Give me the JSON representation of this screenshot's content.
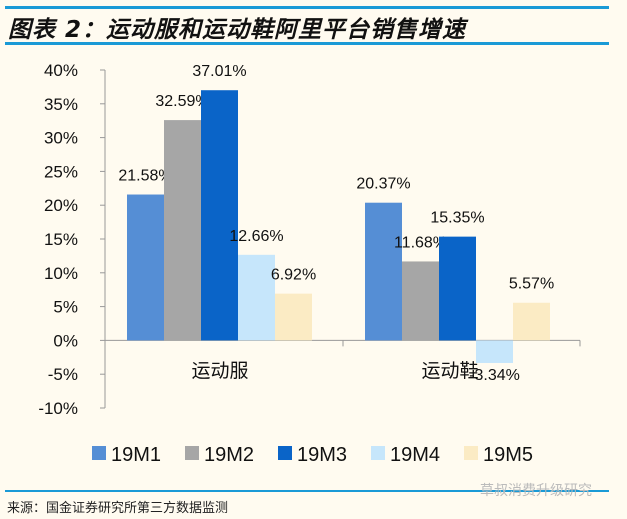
{
  "title": "图表 2：运动服和运动鞋阿里平台销售增速",
  "source": "来源：国金证券研究所第三方数据监测",
  "watermark": "草叔消费升级研究",
  "chart_data": {
    "type": "bar",
    "title": "",
    "categories": [
      "运动服",
      "运动鞋"
    ],
    "series": [
      {
        "name": "19M1",
        "values": [
          21.58,
          20.37
        ],
        "color": "#558ed5"
      },
      {
        "name": "19M2",
        "values": [
          32.59,
          11.68
        ],
        "color": "#a6a6a6"
      },
      {
        "name": "19M3",
        "values": [
          37.01,
          15.35
        ],
        "color": "#0a64c8"
      },
      {
        "name": "19M4",
        "values": [
          12.66,
          -3.34
        ],
        "color": "#c6e6fb"
      },
      {
        "name": "19M5",
        "values": [
          6.92,
          5.57
        ],
        "color": "#fbebc4"
      }
    ],
    "data_labels": [
      [
        "21.58%",
        "20.37%"
      ],
      [
        "32.59%",
        "11.68%"
      ],
      [
        "37.01%",
        "15.35%"
      ],
      [
        "12.66%",
        "-3.34%"
      ],
      [
        "6.92%",
        "5.57%"
      ]
    ],
    "yticks": [
      "40%",
      "35%",
      "30%",
      "25%",
      "20%",
      "15%",
      "10%",
      "5%",
      "0%",
      "-5%",
      "-10%"
    ],
    "ylim": [
      -10,
      40
    ],
    "grid": false,
    "legend": "bottom",
    "xlabel": "",
    "ylabel": ""
  }
}
